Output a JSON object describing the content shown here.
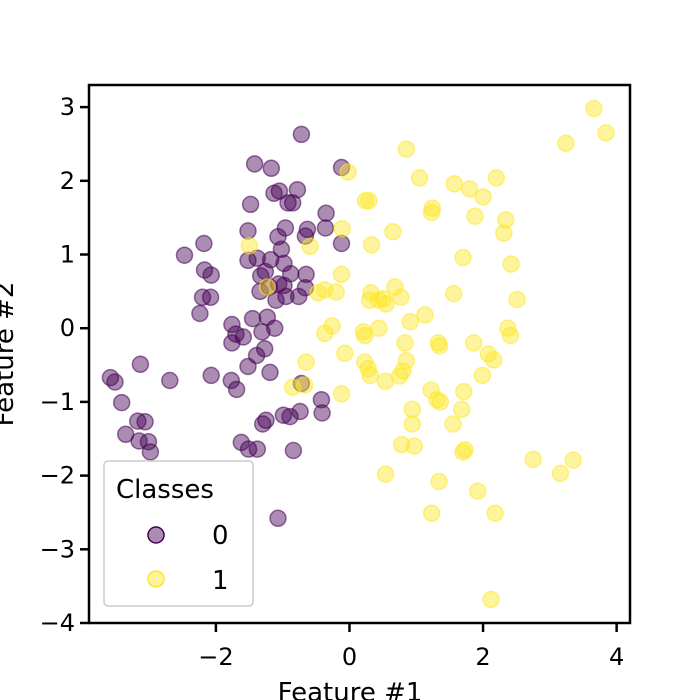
{
  "chart_data": {
    "type": "scatter",
    "title": "",
    "xlabel": "Feature #1",
    "ylabel": "Feature #2",
    "xlim": [
      -3.9,
      4.2
    ],
    "ylim": [
      -4,
      3.3
    ],
    "x_ticks": [
      -2,
      0,
      2,
      4
    ],
    "y_ticks": [
      -4,
      -3,
      -2,
      -1,
      0,
      1,
      2,
      3
    ],
    "x_tick_labels": [
      "−2",
      "0",
      "2",
      "4"
    ],
    "y_tick_labels": [
      "−4",
      "−3",
      "−2",
      "−1",
      "0",
      "1",
      "2",
      "3"
    ],
    "grid": false,
    "legend": {
      "title": "Classes",
      "placement": "lower-left",
      "entries": [
        "0",
        "1"
      ]
    },
    "marker_alpha": 0.45,
    "series": [
      {
        "name": "0",
        "color": "#440154",
        "points": [
          [
            -0.72,
            2.63
          ],
          [
            -1.42,
            2.23
          ],
          [
            -1.17,
            2.17
          ],
          [
            -1.05,
            1.86
          ],
          [
            -1.13,
            1.83
          ],
          [
            -0.78,
            1.88
          ],
          [
            -0.12,
            2.18
          ],
          [
            -0.85,
            1.7
          ],
          [
            -0.92,
            1.7
          ],
          [
            -0.35,
            1.56
          ],
          [
            -1.48,
            1.68
          ],
          [
            -1.52,
            1.32
          ],
          [
            -1.07,
            1.24
          ],
          [
            -0.96,
            1.36
          ],
          [
            -0.63,
            1.34
          ],
          [
            -0.66,
            1.25
          ],
          [
            -0.36,
            1.36
          ],
          [
            -0.12,
            1.15
          ],
          [
            -2.18,
            1.15
          ],
          [
            -2.47,
            0.99
          ],
          [
            -1.02,
            1.07
          ],
          [
            -1.38,
            0.95
          ],
          [
            -1.18,
            0.93
          ],
          [
            -1.52,
            0.92
          ],
          [
            -0.98,
            0.88
          ],
          [
            -0.88,
            0.74
          ],
          [
            -0.65,
            0.73
          ],
          [
            -1.26,
            0.77
          ],
          [
            -1.33,
            0.71
          ],
          [
            -2.17,
            0.79
          ],
          [
            -2.07,
            0.72
          ],
          [
            -0.98,
            0.58
          ],
          [
            -1.06,
            0.6
          ],
          [
            -0.95,
            0.43
          ],
          [
            -1.1,
            0.38
          ],
          [
            -1.2,
            0.56
          ],
          [
            -1.34,
            0.5
          ],
          [
            -0.66,
            0.55
          ],
          [
            -0.76,
            0.43
          ],
          [
            -2.2,
            0.42
          ],
          [
            -2.08,
            0.42
          ],
          [
            -2.24,
            0.2
          ],
          [
            -1.76,
            0.05
          ],
          [
            -1.7,
            -0.08
          ],
          [
            -1.45,
            0.13
          ],
          [
            -1.23,
            0.15
          ],
          [
            -1.12,
            0.0
          ],
          [
            -1.31,
            -0.05
          ],
          [
            -1.59,
            -0.12
          ],
          [
            -1.76,
            -0.2
          ],
          [
            -1.27,
            -0.28
          ],
          [
            -1.39,
            -0.37
          ],
          [
            -1.52,
            -0.52
          ],
          [
            -1.19,
            -0.6
          ],
          [
            -2.07,
            -0.64
          ],
          [
            -1.77,
            -0.71
          ],
          [
            -1.69,
            -0.83
          ],
          [
            -0.72,
            -0.75
          ],
          [
            -2.69,
            -0.71
          ],
          [
            -3.13,
            -0.49
          ],
          [
            -3.58,
            -0.67
          ],
          [
            -3.51,
            -0.73
          ],
          [
            -3.41,
            -1.01
          ],
          [
            -3.17,
            -1.26
          ],
          [
            -3.06,
            -1.27
          ],
          [
            -3.35,
            -1.44
          ],
          [
            -3.15,
            -1.53
          ],
          [
            -3.01,
            -1.54
          ],
          [
            -2.98,
            -1.68
          ],
          [
            -1.25,
            -1.25
          ],
          [
            -1.3,
            -1.3
          ],
          [
            -0.99,
            -1.18
          ],
          [
            -0.89,
            -1.2
          ],
          [
            -0.74,
            -1.13
          ],
          [
            -0.42,
            -0.97
          ],
          [
            -0.41,
            -1.15
          ],
          [
            -1.62,
            -1.55
          ],
          [
            -1.51,
            -1.64
          ],
          [
            -1.38,
            -1.64
          ],
          [
            -0.84,
            -1.66
          ],
          [
            -1.07,
            -2.58
          ]
        ]
      },
      {
        "name": "1",
        "color": "#fde725",
        "points": [
          [
            3.66,
            2.98
          ],
          [
            3.84,
            2.65
          ],
          [
            3.24,
            2.51
          ],
          [
            0.85,
            2.43
          ],
          [
            -0.02,
            2.12
          ],
          [
            1.05,
            2.04
          ],
          [
            2.2,
            2.04
          ],
          [
            1.57,
            1.96
          ],
          [
            1.8,
            1.89
          ],
          [
            2.0,
            1.78
          ],
          [
            0.24,
            1.73
          ],
          [
            0.29,
            1.73
          ],
          [
            1.24,
            1.63
          ],
          [
            1.23,
            1.57
          ],
          [
            1.88,
            1.52
          ],
          [
            2.34,
            1.47
          ],
          [
            -0.11,
            1.35
          ],
          [
            0.65,
            1.31
          ],
          [
            2.31,
            1.29
          ],
          [
            0.33,
            1.13
          ],
          [
            -1.5,
            1.12
          ],
          [
            -0.59,
            1.11
          ],
          [
            1.7,
            0.96
          ],
          [
            2.42,
            0.87
          ],
          [
            -0.12,
            0.73
          ],
          [
            -1.23,
            0.56
          ],
          [
            -0.37,
            0.52
          ],
          [
            -0.2,
            0.49
          ],
          [
            -0.47,
            0.48
          ],
          [
            0.32,
            0.48
          ],
          [
            0.68,
            0.56
          ],
          [
            1.56,
            0.47
          ],
          [
            2.51,
            0.39
          ],
          [
            0.77,
            0.42
          ],
          [
            0.51,
            0.4
          ],
          [
            0.44,
            0.38
          ],
          [
            0.3,
            0.38
          ],
          [
            0.55,
            0.33
          ],
          [
            1.13,
            0.18
          ],
          [
            0.91,
            0.09
          ],
          [
            -0.26,
            0.03
          ],
          [
            0.44,
            0.0
          ],
          [
            -0.37,
            -0.07
          ],
          [
            0.21,
            -0.05
          ],
          [
            0.23,
            -0.1
          ],
          [
            2.37,
            0.0
          ],
          [
            2.41,
            -0.1
          ],
          [
            1.33,
            -0.2
          ],
          [
            1.35,
            -0.24
          ],
          [
            1.86,
            -0.2
          ],
          [
            0.83,
            -0.2
          ],
          [
            2.08,
            -0.35
          ],
          [
            2.16,
            -0.43
          ],
          [
            -0.07,
            -0.34
          ],
          [
            0.23,
            -0.46
          ],
          [
            0.28,
            -0.55
          ],
          [
            -0.65,
            -0.46
          ],
          [
            0.85,
            -0.44
          ],
          [
            0.31,
            -0.64
          ],
          [
            0.8,
            -0.58
          ],
          [
            0.75,
            -0.65
          ],
          [
            0.54,
            -0.72
          ],
          [
            1.99,
            -0.64
          ],
          [
            -0.85,
            -0.8
          ],
          [
            -0.67,
            -0.77
          ],
          [
            -0.12,
            -0.89
          ],
          [
            1.71,
            -0.86
          ],
          [
            1.22,
            -0.84
          ],
          [
            1.31,
            -0.97
          ],
          [
            1.36,
            -1.0
          ],
          [
            1.68,
            -1.1
          ],
          [
            0.94,
            -1.1
          ],
          [
            1.55,
            -1.3
          ],
          [
            0.94,
            -1.3
          ],
          [
            1.73,
            -1.65
          ],
          [
            1.7,
            -1.68
          ],
          [
            0.78,
            -1.58
          ],
          [
            0.97,
            -1.6
          ],
          [
            2.75,
            -1.78
          ],
          [
            3.35,
            -1.79
          ],
          [
            3.16,
            -1.97
          ],
          [
            0.54,
            -1.98
          ],
          [
            1.34,
            -2.08
          ],
          [
            1.92,
            -2.21
          ],
          [
            1.23,
            -2.51
          ],
          [
            2.18,
            -2.51
          ],
          [
            2.12,
            -3.68
          ]
        ]
      }
    ]
  }
}
